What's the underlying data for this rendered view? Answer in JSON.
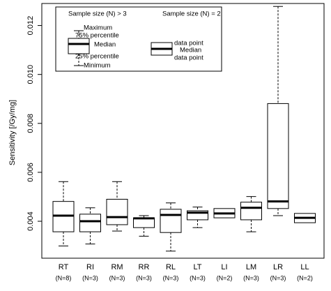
{
  "chart_data": {
    "type": "box",
    "y_label": "Sensitivity [/Gy/mg]",
    "categories": [
      "RT",
      "RI",
      "RM",
      "RR",
      "RL",
      "LT",
      "LI",
      "LM",
      "LR",
      "LL"
    ],
    "n_labels": [
      "(N=8)",
      "(N=3)",
      "(N=3)",
      "(N=3)",
      "(N=3)",
      "(N=3)",
      "(N=2)",
      "(N=3)",
      "(N=3)",
      "(N=2)"
    ],
    "boxes": [
      {
        "min": 0.00299,
        "q1": 0.00357,
        "median": 0.00423,
        "q3": 0.00481,
        "max": 0.00562
      },
      {
        "min": 0.00307,
        "q1": 0.00357,
        "median": 0.004,
        "q3": 0.00429,
        "max": 0.00455
      },
      {
        "min": 0.0036,
        "q1": 0.00386,
        "median": 0.00417,
        "q3": 0.0049,
        "max": 0.00562
      },
      {
        "min": 0.00339,
        "q1": 0.00374,
        "median": 0.00412,
        "q3": 0.00414,
        "max": 0.00423
      },
      {
        "min": 0.00278,
        "q1": 0.00354,
        "median": 0.00426,
        "q3": 0.00449,
        "max": 0.00475
      },
      {
        "min": 0.00374,
        "q1": 0.00406,
        "median": 0.00435,
        "q3": 0.00443,
        "max": 0.00458
      },
      {
        "q1": 0.00414,
        "median": 0.00432,
        "q3": 0.00452
      },
      {
        "min": 0.00357,
        "q1": 0.00406,
        "median": 0.00455,
        "q3": 0.00478,
        "max": 0.00501
      },
      {
        "min": 0.00423,
        "q1": 0.00452,
        "median": 0.00481,
        "q3": 0.00881,
        "max": 0.01278
      },
      {
        "q1": 0.00394,
        "median": 0.00414,
        "q3": 0.00432
      }
    ],
    "color": "#000000",
    "ylim": [
      0.00249,
      0.0129
    ],
    "yticks": [
      0.004,
      0.006,
      0.008,
      {
        "value": 0.01,
        "label": "0.010"
      },
      0.012
    ],
    "legend": {
      "left_title": "Sample size (N) > 3",
      "right_title": "Sample size (N) = 2",
      "maximum": "Maximum",
      "q3": "75% percentile",
      "median": "Median",
      "q1": "25% percentile",
      "minimum": "Minimum",
      "point_top": "data point",
      "median_2": "Median",
      "point_bottom": "data point"
    }
  }
}
